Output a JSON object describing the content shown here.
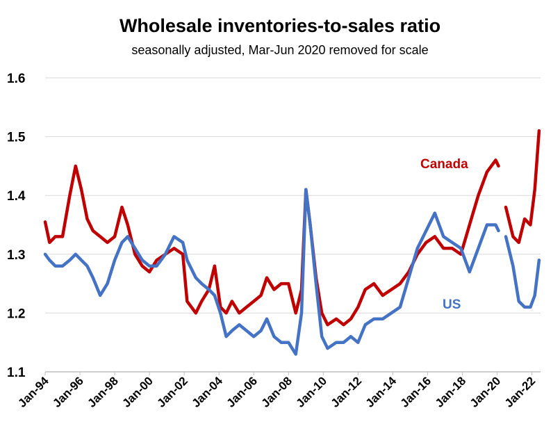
{
  "chart_data": {
    "type": "line",
    "title": "Wholesale inventories-to-sales ratio",
    "subtitle": "seasonally adjusted, Mar-Jun 2020 removed for scale",
    "xlabel": "",
    "ylabel": "",
    "ylim": [
      1.1,
      1.6
    ],
    "y_ticks": [
      "1.1",
      "1.2",
      "1.3",
      "1.4",
      "1.5",
      "1.6"
    ],
    "x_ticks": [
      "Jan-94",
      "Jan-96",
      "Jan-98",
      "Jan-00",
      "Jan-02",
      "Jan-04",
      "Jan-06",
      "Jan-08",
      "Jan-10",
      "Jan-12",
      "Jan-14",
      "Jan-16",
      "Jan-18",
      "Jan-20",
      "Jan-22"
    ],
    "grid": true,
    "legend": "inline labels",
    "gap": [
      "2020-03",
      "2020-06"
    ],
    "series": [
      {
        "name": "Canada",
        "color": "#C00000",
        "points": [
          [
            "1994-01",
            1.355
          ],
          [
            "1994-04",
            1.32
          ],
          [
            "1994-08",
            1.33
          ],
          [
            "1995-01",
            1.33
          ],
          [
            "1995-06",
            1.4
          ],
          [
            "1995-10",
            1.45
          ],
          [
            "1996-02",
            1.41
          ],
          [
            "1996-06",
            1.36
          ],
          [
            "1996-10",
            1.34
          ],
          [
            "1997-03",
            1.33
          ],
          [
            "1997-08",
            1.32
          ],
          [
            "1998-01",
            1.33
          ],
          [
            "1998-06",
            1.38
          ],
          [
            "1998-10",
            1.35
          ],
          [
            "1999-03",
            1.3
          ],
          [
            "1999-08",
            1.28
          ],
          [
            "2000-01",
            1.27
          ],
          [
            "2000-06",
            1.29
          ],
          [
            "2000-12",
            1.3
          ],
          [
            "2001-06",
            1.31
          ],
          [
            "2001-12",
            1.3
          ],
          [
            "2002-03",
            1.22
          ],
          [
            "2002-09",
            1.2
          ],
          [
            "2003-01",
            1.22
          ],
          [
            "2003-06",
            1.24
          ],
          [
            "2003-10",
            1.28
          ],
          [
            "2004-02",
            1.21
          ],
          [
            "2004-06",
            1.2
          ],
          [
            "2004-10",
            1.22
          ],
          [
            "2005-03",
            1.2
          ],
          [
            "2005-08",
            1.21
          ],
          [
            "2006-01",
            1.22
          ],
          [
            "2006-06",
            1.23
          ],
          [
            "2006-10",
            1.26
          ],
          [
            "2007-03",
            1.24
          ],
          [
            "2007-08",
            1.25
          ],
          [
            "2008-01",
            1.25
          ],
          [
            "2008-06",
            1.2
          ],
          [
            "2008-10",
            1.24
          ],
          [
            "2009-01",
            1.41
          ],
          [
            "2009-04",
            1.35
          ],
          [
            "2009-08",
            1.26
          ],
          [
            "2009-12",
            1.2
          ],
          [
            "2010-04",
            1.18
          ],
          [
            "2010-10",
            1.19
          ],
          [
            "2011-03",
            1.18
          ],
          [
            "2011-08",
            1.19
          ],
          [
            "2012-01",
            1.21
          ],
          [
            "2012-06",
            1.24
          ],
          [
            "2012-12",
            1.25
          ],
          [
            "2013-06",
            1.23
          ],
          [
            "2013-12",
            1.24
          ],
          [
            "2014-06",
            1.25
          ],
          [
            "2014-12",
            1.27
          ],
          [
            "2015-06",
            1.3
          ],
          [
            "2015-12",
            1.32
          ],
          [
            "2016-06",
            1.33
          ],
          [
            "2016-12",
            1.31
          ],
          [
            "2017-06",
            1.31
          ],
          [
            "2017-12",
            1.3
          ],
          [
            "2018-06",
            1.35
          ],
          [
            "2018-12",
            1.4
          ],
          [
            "2019-06",
            1.44
          ],
          [
            "2019-12",
            1.46
          ],
          [
            "2020-02",
            1.45
          ],
          [
            "2020-07",
            1.38
          ],
          [
            "2020-12",
            1.33
          ],
          [
            "2021-04",
            1.32
          ],
          [
            "2021-08",
            1.36
          ],
          [
            "2021-12",
            1.35
          ],
          [
            "2022-03",
            1.41
          ],
          [
            "2022-06",
            1.51
          ]
        ]
      },
      {
        "name": "US",
        "color": "#4472C4",
        "points": [
          [
            "1994-01",
            1.3
          ],
          [
            "1994-04",
            1.29
          ],
          [
            "1994-08",
            1.28
          ],
          [
            "1995-01",
            1.28
          ],
          [
            "1995-06",
            1.29
          ],
          [
            "1995-10",
            1.3
          ],
          [
            "1996-02",
            1.29
          ],
          [
            "1996-06",
            1.28
          ],
          [
            "1996-10",
            1.26
          ],
          [
            "1997-03",
            1.23
          ],
          [
            "1997-08",
            1.25
          ],
          [
            "1998-01",
            1.29
          ],
          [
            "1998-06",
            1.32
          ],
          [
            "1998-10",
            1.33
          ],
          [
            "1999-03",
            1.31
          ],
          [
            "1999-08",
            1.29
          ],
          [
            "2000-01",
            1.28
          ],
          [
            "2000-06",
            1.28
          ],
          [
            "2000-12",
            1.3
          ],
          [
            "2001-06",
            1.33
          ],
          [
            "2001-12",
            1.32
          ],
          [
            "2002-03",
            1.29
          ],
          [
            "2002-09",
            1.26
          ],
          [
            "2003-01",
            1.25
          ],
          [
            "2003-06",
            1.24
          ],
          [
            "2003-10",
            1.23
          ],
          [
            "2004-02",
            1.2
          ],
          [
            "2004-06",
            1.16
          ],
          [
            "2004-10",
            1.17
          ],
          [
            "2005-03",
            1.18
          ],
          [
            "2005-08",
            1.17
          ],
          [
            "2006-01",
            1.16
          ],
          [
            "2006-06",
            1.17
          ],
          [
            "2006-10",
            1.19
          ],
          [
            "2007-03",
            1.16
          ],
          [
            "2007-08",
            1.15
          ],
          [
            "2008-01",
            1.15
          ],
          [
            "2008-06",
            1.13
          ],
          [
            "2008-10",
            1.2
          ],
          [
            "2009-01",
            1.41
          ],
          [
            "2009-04",
            1.35
          ],
          [
            "2009-08",
            1.25
          ],
          [
            "2009-12",
            1.16
          ],
          [
            "2010-04",
            1.14
          ],
          [
            "2010-10",
            1.15
          ],
          [
            "2011-03",
            1.15
          ],
          [
            "2011-08",
            1.16
          ],
          [
            "2012-01",
            1.15
          ],
          [
            "2012-06",
            1.18
          ],
          [
            "2012-12",
            1.19
          ],
          [
            "2013-06",
            1.19
          ],
          [
            "2013-12",
            1.2
          ],
          [
            "2014-06",
            1.21
          ],
          [
            "2014-12",
            1.26
          ],
          [
            "2015-06",
            1.31
          ],
          [
            "2015-12",
            1.34
          ],
          [
            "2016-06",
            1.37
          ],
          [
            "2016-12",
            1.33
          ],
          [
            "2017-06",
            1.32
          ],
          [
            "2017-12",
            1.31
          ],
          [
            "2018-06",
            1.27
          ],
          [
            "2018-12",
            1.31
          ],
          [
            "2019-06",
            1.35
          ],
          [
            "2019-12",
            1.35
          ],
          [
            "2020-02",
            1.34
          ],
          [
            "2020-07",
            1.33
          ],
          [
            "2020-12",
            1.28
          ],
          [
            "2021-04",
            1.22
          ],
          [
            "2021-08",
            1.21
          ],
          [
            "2021-12",
            1.21
          ],
          [
            "2022-03",
            1.23
          ],
          [
            "2022-06",
            1.29
          ]
        ]
      }
    ]
  }
}
